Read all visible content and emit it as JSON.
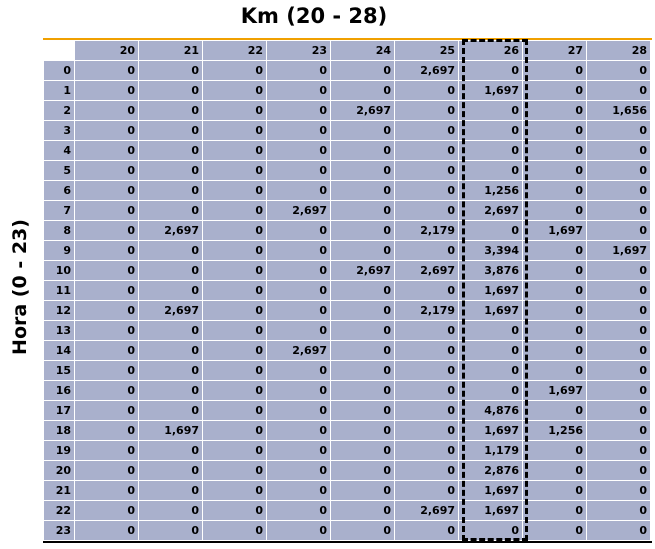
{
  "title": "Km (20 - 28)",
  "ylabel": "Hora (0 - 23)",
  "km_columns": [
    "20",
    "21",
    "22",
    "23",
    "24",
    "25",
    "26",
    "27",
    "28"
  ],
  "highlighted_column": "26",
  "rows": [
    {
      "hour": "0",
      "values": [
        "0",
        "0",
        "0",
        "0",
        "0",
        "2,697",
        "0",
        "0",
        "0"
      ]
    },
    {
      "hour": "1",
      "values": [
        "0",
        "0",
        "0",
        "0",
        "0",
        "0",
        "1,697",
        "0",
        "0"
      ]
    },
    {
      "hour": "2",
      "values": [
        "0",
        "0",
        "0",
        "0",
        "2,697",
        "0",
        "0",
        "0",
        "1,656"
      ]
    },
    {
      "hour": "3",
      "values": [
        "0",
        "0",
        "0",
        "0",
        "0",
        "0",
        "0",
        "0",
        "0"
      ]
    },
    {
      "hour": "4",
      "values": [
        "0",
        "0",
        "0",
        "0",
        "0",
        "0",
        "0",
        "0",
        "0"
      ]
    },
    {
      "hour": "5",
      "values": [
        "0",
        "0",
        "0",
        "0",
        "0",
        "0",
        "0",
        "0",
        "0"
      ]
    },
    {
      "hour": "6",
      "values": [
        "0",
        "0",
        "0",
        "0",
        "0",
        "0",
        "1,256",
        "0",
        "0"
      ]
    },
    {
      "hour": "7",
      "values": [
        "0",
        "0",
        "0",
        "2,697",
        "0",
        "0",
        "2,697",
        "0",
        "0"
      ]
    },
    {
      "hour": "8",
      "values": [
        "0",
        "2,697",
        "0",
        "0",
        "0",
        "2,179",
        "0",
        "1,697",
        "0"
      ]
    },
    {
      "hour": "9",
      "values": [
        "0",
        "0",
        "0",
        "0",
        "0",
        "0",
        "3,394",
        "0",
        "1,697"
      ]
    },
    {
      "hour": "10",
      "values": [
        "0",
        "0",
        "0",
        "0",
        "2,697",
        "2,697",
        "3,876",
        "0",
        "0"
      ]
    },
    {
      "hour": "11",
      "values": [
        "0",
        "0",
        "0",
        "0",
        "0",
        "0",
        "1,697",
        "0",
        "0"
      ]
    },
    {
      "hour": "12",
      "values": [
        "0",
        "2,697",
        "0",
        "0",
        "0",
        "2,179",
        "1,697",
        "0",
        "0"
      ]
    },
    {
      "hour": "13",
      "values": [
        "0",
        "0",
        "0",
        "0",
        "0",
        "0",
        "0",
        "0",
        "0"
      ]
    },
    {
      "hour": "14",
      "values": [
        "0",
        "0",
        "0",
        "2,697",
        "0",
        "0",
        "0",
        "0",
        "0"
      ]
    },
    {
      "hour": "15",
      "values": [
        "0",
        "0",
        "0",
        "0",
        "0",
        "0",
        "0",
        "0",
        "0"
      ]
    },
    {
      "hour": "16",
      "values": [
        "0",
        "0",
        "0",
        "0",
        "0",
        "0",
        "0",
        "1,697",
        "0"
      ]
    },
    {
      "hour": "17",
      "values": [
        "0",
        "0",
        "0",
        "0",
        "0",
        "0",
        "4,876",
        "0",
        "0"
      ]
    },
    {
      "hour": "18",
      "values": [
        "0",
        "1,697",
        "0",
        "0",
        "0",
        "0",
        "1,697",
        "1,256",
        "0"
      ]
    },
    {
      "hour": "19",
      "values": [
        "0",
        "0",
        "0",
        "0",
        "0",
        "0",
        "1,179",
        "0",
        "0"
      ]
    },
    {
      "hour": "20",
      "values": [
        "0",
        "0",
        "0",
        "0",
        "0",
        "0",
        "2,876",
        "0",
        "0"
      ]
    },
    {
      "hour": "21",
      "values": [
        "0",
        "0",
        "0",
        "0",
        "0",
        "0",
        "1,697",
        "0",
        "0"
      ]
    },
    {
      "hour": "22",
      "values": [
        "0",
        "0",
        "0",
        "0",
        "0",
        "2,697",
        "1,697",
        "0",
        "0"
      ]
    },
    {
      "hour": "23",
      "values": [
        "0",
        "0",
        "0",
        "0",
        "0",
        "0",
        "0",
        "0",
        "0"
      ]
    }
  ],
  "colors": {
    "cell_bg": "#a9b0cc",
    "top_rule": "#f0a000",
    "highlight_border": "#000000"
  }
}
